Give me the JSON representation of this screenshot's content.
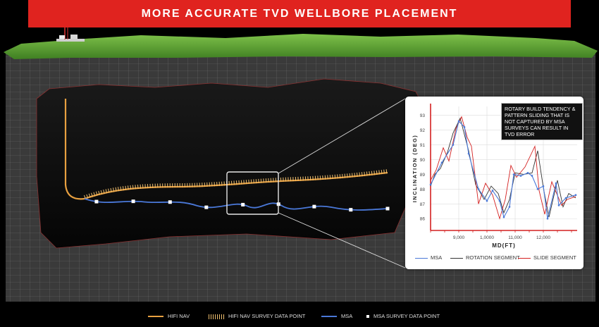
{
  "title": "MORE ACCURATE TVD WELLBORE PLACEMENT",
  "colors": {
    "banner": "#e0231f",
    "hifi_nav": "#e8a040",
    "msa": "#4a78d8",
    "rotation": "#333333",
    "slide": "#d42020"
  },
  "callout": "ROTARY BUILD TENDENCY & PATTERN SLIDING THAT IS NOT CAPTURED BY MSA SURVEYS CAN RESULT IN TVD ERROR",
  "legend": [
    {
      "label": "HIFI NAV",
      "swatch": "line",
      "color": "#e8a040"
    },
    {
      "label": "HIFI NAV SURVEY DATA POINT",
      "swatch": "ticks",
      "color": "#f0c070"
    },
    {
      "label": "MSA",
      "swatch": "line",
      "color": "#4a78d8"
    },
    {
      "label": "MSA SURVEY DATA POINT",
      "swatch": "square",
      "color": "#ffffff"
    }
  ],
  "chart_data": {
    "type": "line",
    "xlabel": "MD(FT)",
    "ylabel": "INCLINATION (DEG)",
    "xlim": [
      8000,
      13200
    ],
    "ylim": [
      85.2,
      93.6
    ],
    "x_ticks": [
      9000,
      10000,
      11000,
      12000
    ],
    "x_tick_labels": [
      "9,000",
      "1,0000",
      "11,000",
      "12,000"
    ],
    "y_ticks": [
      86,
      87,
      88,
      89,
      90,
      91,
      92,
      93
    ],
    "legend_position": "bottom",
    "series": [
      {
        "name": "MSA",
        "color": "#4a78d8",
        "x": [
          8000,
          8400,
          8800,
          9000,
          9200,
          9350,
          9700,
          10000,
          10200,
          10450,
          10600,
          10800,
          10950,
          11200,
          11450,
          11600,
          11800,
          12000,
          12150,
          12450,
          12550,
          12800,
          13150
        ],
        "y": [
          88.3,
          89.8,
          91.0,
          92.6,
          92.2,
          90.4,
          88.0,
          87.2,
          87.9,
          87.2,
          86.1,
          86.8,
          89.0,
          88.9,
          89.1,
          88.9,
          88.0,
          88.2,
          86.0,
          88.4,
          86.9,
          87.4,
          87.6
        ]
      },
      {
        "name": "ROTATION SEGMENT",
        "color": "#333333",
        "x": [
          8000,
          8150,
          8350,
          8600,
          8800,
          9050,
          9350,
          9600,
          9900,
          10150,
          10400,
          10600,
          10800,
          11000,
          11300,
          11600,
          11800,
          12000,
          12200,
          12500,
          12700,
          12900,
          13150
        ],
        "y": [
          88.2,
          89.0,
          89.4,
          90.5,
          91.8,
          92.8,
          90.6,
          88.3,
          87.3,
          88.2,
          87.7,
          86.4,
          87.3,
          89.1,
          89.0,
          89.1,
          90.6,
          88.1,
          86.1,
          88.6,
          86.8,
          87.7,
          87.4
        ]
      },
      {
        "name": "SLIDE SEGMENT",
        "color": "#d42020",
        "x": [
          8000,
          8200,
          8450,
          8650,
          8900,
          9100,
          9300,
          9450,
          9700,
          9950,
          10200,
          10450,
          10650,
          10850,
          11050,
          11350,
          11700,
          11850,
          12050,
          12300,
          12650,
          12850,
          13150
        ],
        "y": [
          88.6,
          89.3,
          90.8,
          89.9,
          92.1,
          92.9,
          91.5,
          90.9,
          87.0,
          88.4,
          87.6,
          86.0,
          87.3,
          89.6,
          88.8,
          89.5,
          90.9,
          87.9,
          86.3,
          88.5,
          86.9,
          87.3,
          87.5
        ]
      }
    ]
  }
}
